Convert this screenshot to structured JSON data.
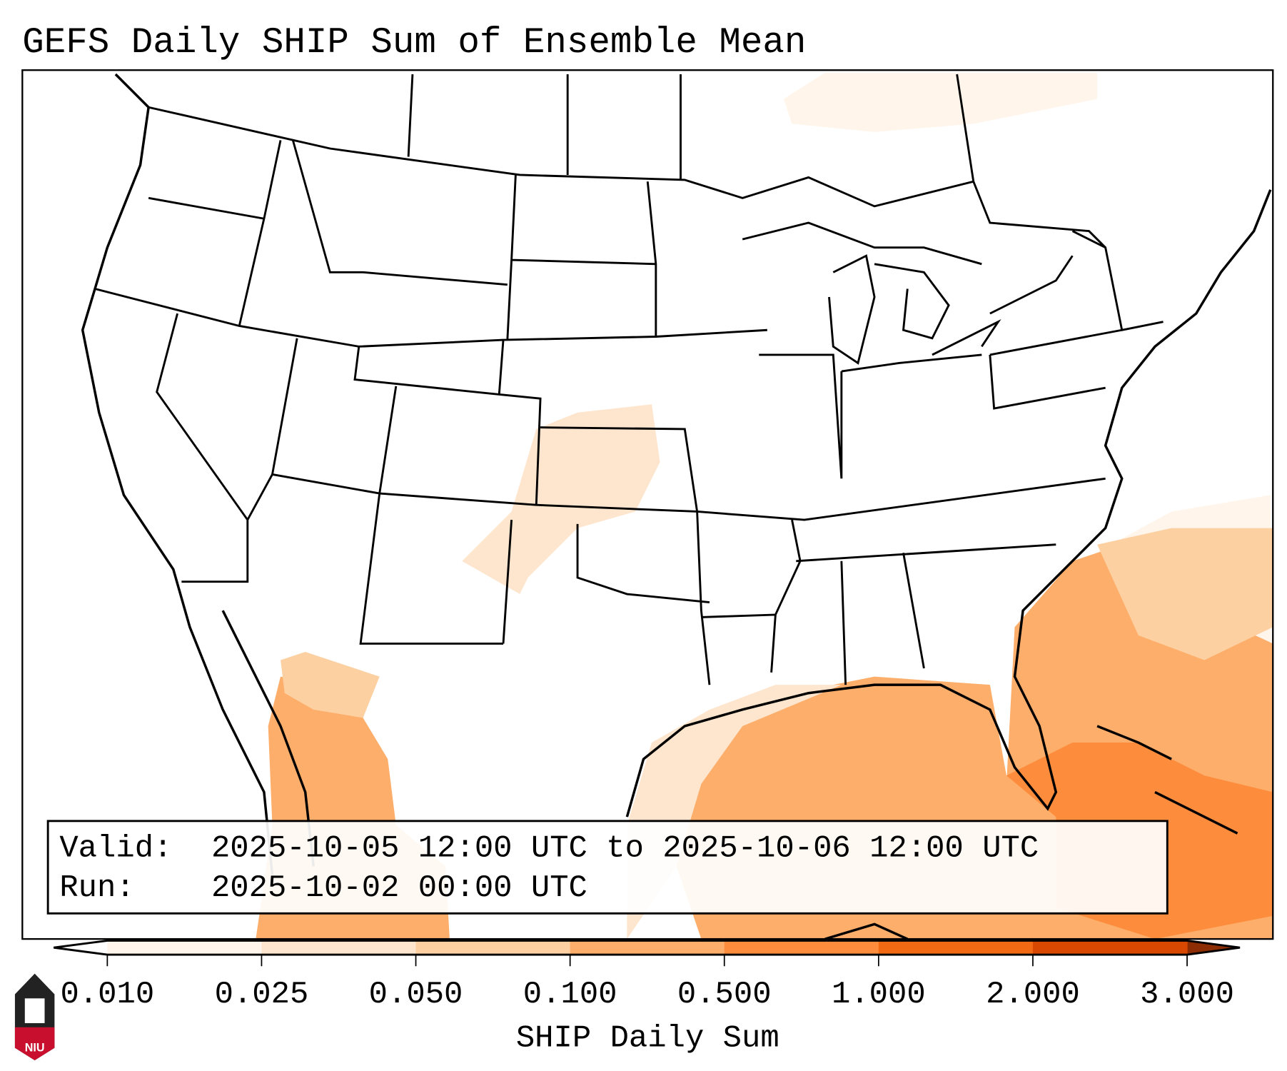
{
  "title": "GEFS Daily SHIP Sum of Ensemble Mean",
  "legend_box": {
    "valid_label": "Valid:",
    "valid_value": "2025-10-05 12:00 UTC to 2025-10-06 12:00 UTC",
    "run_label": "Run:",
    "run_value": "2025-10-02 00:00 UTC"
  },
  "colorbar": {
    "label": "SHIP Daily Sum",
    "ticks": [
      "0.010",
      "0.025",
      "0.050",
      "0.100",
      "0.500",
      "1.000",
      "2.000",
      "3.000"
    ],
    "colors": [
      "#fff5eb",
      "#fee6ce",
      "#fdd0a2",
      "#fdae6b",
      "#fd8d3c",
      "#f16913",
      "#d94801"
    ],
    "under_color": "#ffffff",
    "over_color": "#8c2d04"
  },
  "logo": {
    "text": "NIU",
    "color": "#c8102e"
  },
  "shaded_regions": [
    {
      "name": "gulf-of-mexico",
      "level_bin": "0.100-0.500"
    },
    {
      "name": "southeast-atlantic",
      "level_bin": "0.100-0.500"
    },
    {
      "name": "caribbean",
      "level_bin": "0.500-1.000"
    },
    {
      "name": "gulf-of-california",
      "level_bin": "0.100-0.500"
    },
    {
      "name": "kansas",
      "level_bin": "0.025-0.050"
    },
    {
      "name": "north-atlantic-fringe",
      "level_bin": "0.010-0.050"
    },
    {
      "name": "hudson-bay",
      "level_bin": "0.010-0.025"
    }
  ]
}
